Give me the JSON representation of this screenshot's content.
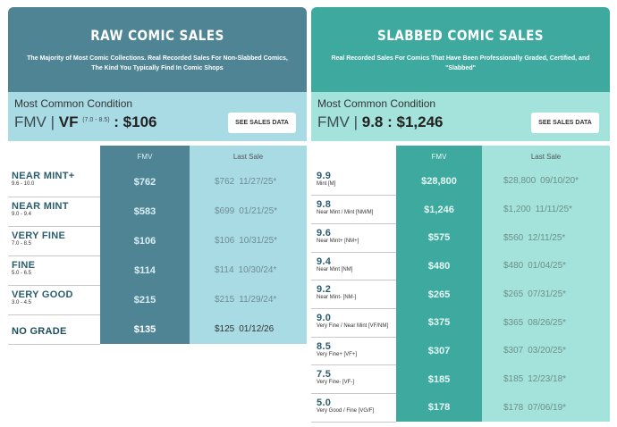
{
  "raw": {
    "title": "RAW COMIC SALES",
    "subtitle": "The Majority of Most Comic Collections. Real Recorded Sales For Non-Slabbed Comics, The Kind You Typically Find In Comic Shops",
    "condition_label": "Most Common Condition",
    "fmv_prefix": "FMV | ",
    "fmv_grade": "VF",
    "fmv_range": "(7.0 - 8.5)",
    "fmv_value": " : $106",
    "button": "SEE SALES DATA",
    "col_fmv": "FMV",
    "col_last": "Last Sale",
    "rows": [
      {
        "grade": "NEAR MINT+",
        "range": "9.6 - 10.0",
        "fmv": "$762",
        "last_price": "$762",
        "last_date": "11/27/25*"
      },
      {
        "grade": "NEAR MINT",
        "range": "9.0 - 9.4",
        "fmv": "$583",
        "last_price": "$699",
        "last_date": "01/21/25*"
      },
      {
        "grade": "VERY FINE",
        "range": "7.0 - 8.5",
        "fmv": "$106",
        "last_price": "$106",
        "last_date": "10/31/25*"
      },
      {
        "grade": "FINE",
        "range": "5.0 - 6.5",
        "fmv": "$114",
        "last_price": "$114",
        "last_date": "10/30/24*"
      },
      {
        "grade": "VERY GOOD",
        "range": "3.0 - 4.5",
        "fmv": "$215",
        "last_price": "$215",
        "last_date": "11/29/24*"
      },
      {
        "grade": "NO GRADE",
        "range": "",
        "fmv": "$135",
        "last_price": "$125",
        "last_date": "01/12/26"
      }
    ]
  },
  "slab": {
    "title": "SLABBED COMIC SALES",
    "subtitle": "Real Recorded Sales For Comics That Have Been Professionally Graded, Certified, and \"Slabbed\"",
    "condition_label": "Most Common Condition",
    "fmv_prefix": "FMV | ",
    "fmv_grade": "9.8",
    "fmv_value": " : $1,246",
    "button": "SEE SALES DATA",
    "col_fmv": "FMV",
    "col_last": "Last Sale",
    "rows": [
      {
        "grade": "9.9",
        "desc": "Mint [M]",
        "fmv": "$28,800",
        "last_price": "$28,800",
        "last_date": "09/10/20*"
      },
      {
        "grade": "9.8",
        "desc": "Near Mint / Mint [NM/M]",
        "fmv": "$1,246",
        "last_price": "$1,200",
        "last_date": "11/11/25*"
      },
      {
        "grade": "9.6",
        "desc": "Near Mint+ [NM+]",
        "fmv": "$575",
        "last_price": "$560",
        "last_date": "12/11/25*"
      },
      {
        "grade": "9.4",
        "desc": "Near Mint [NM]",
        "fmv": "$480",
        "last_price": "$480",
        "last_date": "01/04/25*"
      },
      {
        "grade": "9.2",
        "desc": "Near Mint- [NM-]",
        "fmv": "$265",
        "last_price": "$265",
        "last_date": "07/31/25*"
      },
      {
        "grade": "9.0",
        "desc": "Very Fine / Near Mint [VF/NM]",
        "fmv": "$375",
        "last_price": "$365",
        "last_date": "08/26/25*"
      },
      {
        "grade": "8.5",
        "desc": "Very Fine+ [VF+]",
        "fmv": "$307",
        "last_price": "$307",
        "last_date": "03/20/25*"
      },
      {
        "grade": "7.5",
        "desc": "Very Fine- [VF-]",
        "fmv": "$185",
        "last_price": "$185",
        "last_date": "12/23/18*"
      },
      {
        "grade": "5.0",
        "desc": "Very Good / Fine [VG/F]",
        "fmv": "$178",
        "last_price": "$178",
        "last_date": "07/06/19*"
      }
    ]
  }
}
